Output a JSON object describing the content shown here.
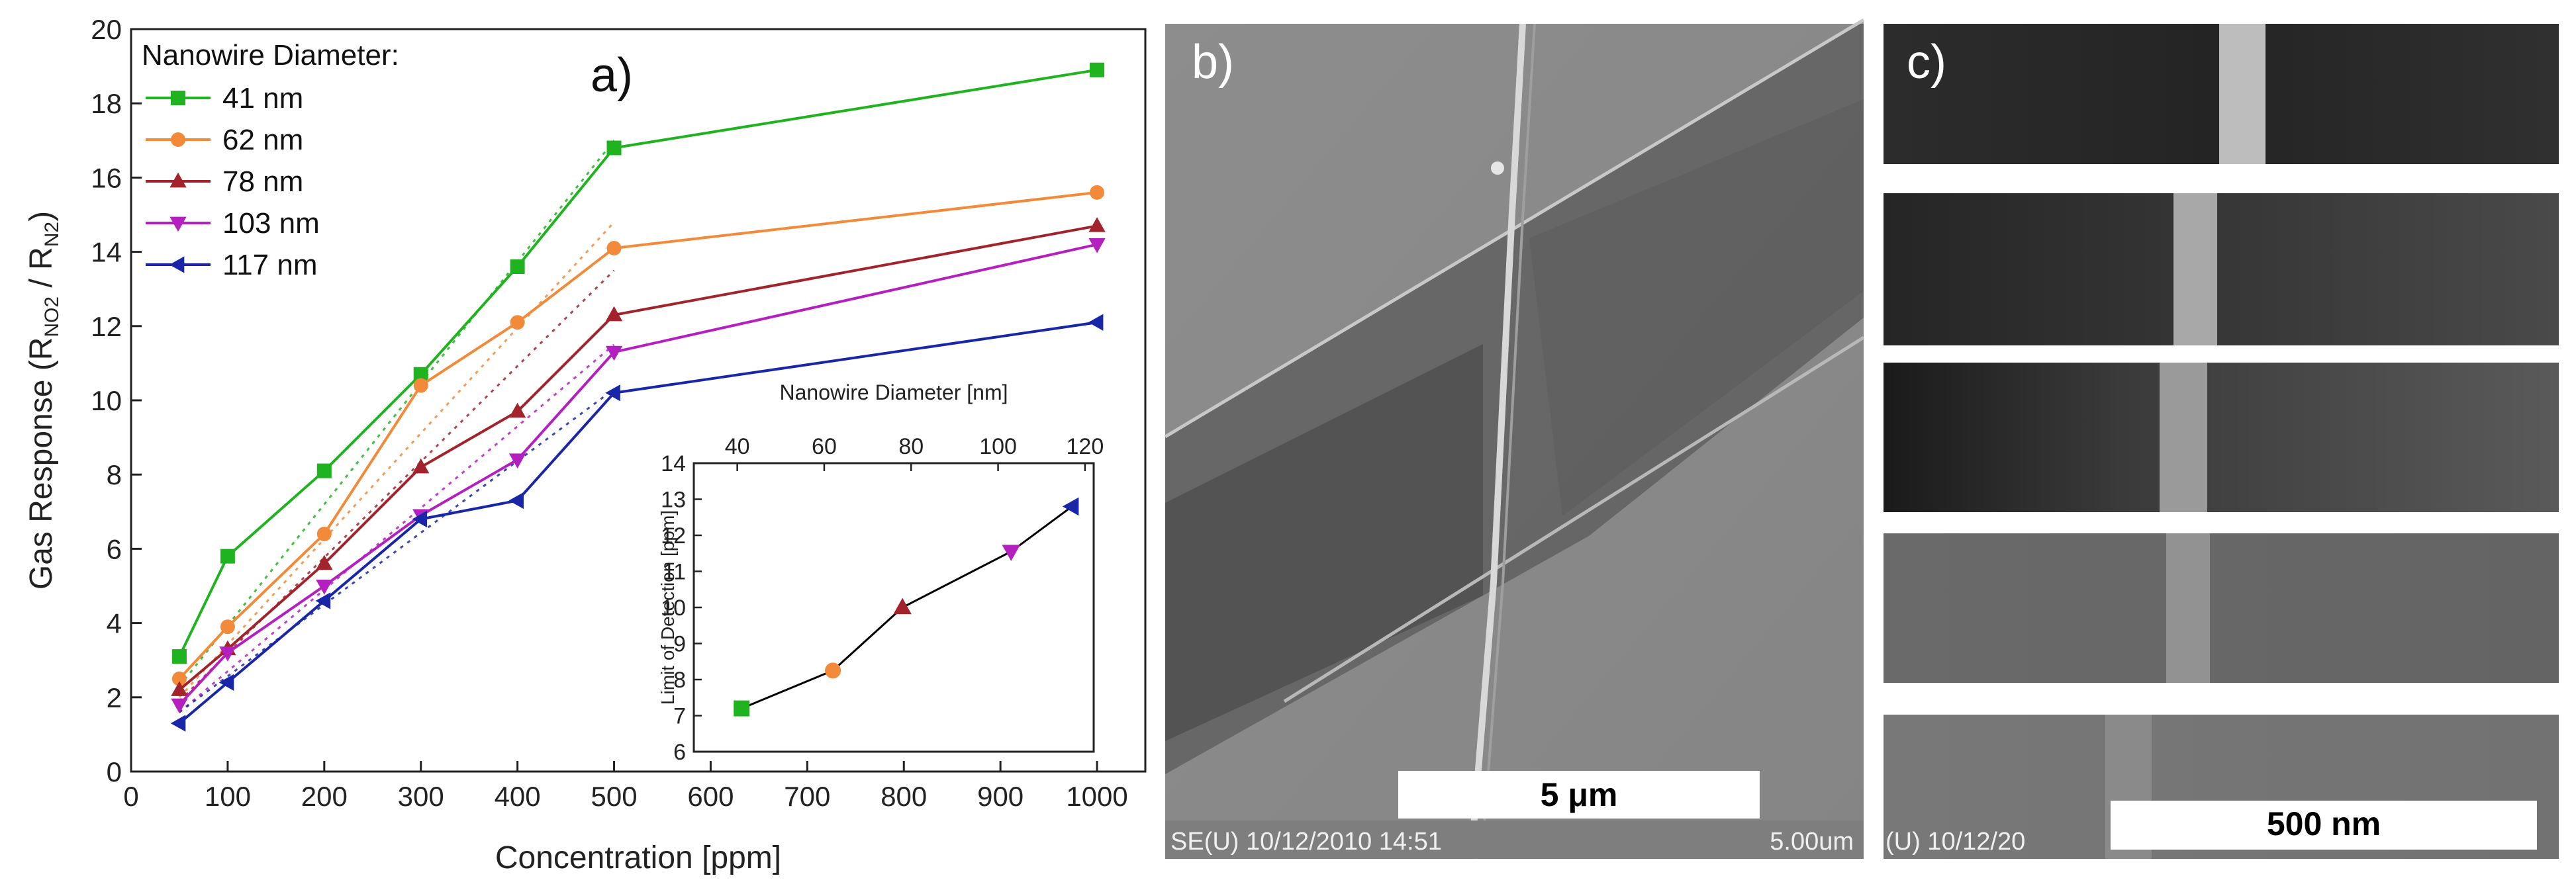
{
  "chart_data": [
    {
      "panel_label": "a)",
      "type": "line",
      "xlabel": "Concentration [ppm]",
      "ylabel_prefix": "Gas Response   (R",
      "ylabel_sub1": "NO2",
      "ylabel_mid": " / R",
      "ylabel_sub2": "N2",
      "ylabel_suffix": ")",
      "ylim": [
        0,
        20
      ],
      "y_ticks": [
        0,
        2,
        4,
        6,
        8,
        10,
        12,
        14,
        16,
        18,
        20
      ],
      "x_ticks": [
        0,
        100,
        200,
        300,
        400,
        500,
        600,
        700,
        800,
        900,
        1000
      ],
      "legend_title": "Nanowire Diameter:",
      "legend_position": "top-left",
      "x": [
        50,
        100,
        200,
        300,
        400,
        500,
        1000
      ],
      "series": [
        {
          "name": "41 nm",
          "color": "#1fb41f",
          "marker": "square",
          "values": [
            3.1,
            5.8,
            8.1,
            10.7,
            13.6,
            16.8,
            18.9
          ]
        },
        {
          "name": "62 nm",
          "color": "#f28a3a",
          "marker": "circle",
          "values": [
            2.5,
            3.9,
            6.4,
            10.4,
            12.1,
            14.1,
            15.6
          ]
        },
        {
          "name": "78 nm",
          "color": "#a3232c",
          "marker": "triangle-up",
          "values": [
            2.2,
            3.3,
            5.6,
            8.2,
            9.7,
            12.3,
            14.7
          ]
        },
        {
          "name": "103 nm",
          "color": "#b41fbf",
          "marker": "triangle-down",
          "values": [
            1.8,
            3.2,
            5.0,
            6.9,
            8.4,
            11.3,
            14.2
          ]
        },
        {
          "name": "117 nm",
          "color": "#1a26a8",
          "marker": "triangle-left",
          "values": [
            1.3,
            2.4,
            4.6,
            6.8,
            7.3,
            10.2,
            12.1
          ]
        }
      ],
      "fit_lines": [
        {
          "color": "#1fb41f",
          "from": [
            50,
            2.3
          ],
          "to": [
            500,
            17.0
          ]
        },
        {
          "color": "#f28a3a",
          "from": [
            50,
            2.0
          ],
          "to": [
            500,
            14.8
          ]
        },
        {
          "color": "#a3232c",
          "from": [
            50,
            1.9
          ],
          "to": [
            500,
            13.5
          ]
        },
        {
          "color": "#b41fbf",
          "from": [
            50,
            1.6
          ],
          "to": [
            500,
            11.5
          ]
        },
        {
          "color": "#1a26a8",
          "from": [
            50,
            1.6
          ],
          "to": [
            500,
            10.3
          ]
        }
      ],
      "inset": {
        "type": "line",
        "xlabel": "Nanowire Diameter [nm]",
        "xlabel_position": "top",
        "ylabel": "Limit of Detection [ppm]",
        "ylim": [
          6,
          14
        ],
        "y_ticks": [
          6,
          7,
          8,
          9,
          10,
          11,
          12,
          13,
          14
        ],
        "xlim": [
          30,
          122
        ],
        "x_ticks": [
          40,
          60,
          80,
          100,
          120
        ],
        "line_color": "#000000",
        "points": [
          {
            "x": 41,
            "y": 7.2,
            "color": "#1fb41f",
            "marker": "square"
          },
          {
            "x": 62,
            "y": 8.25,
            "color": "#f28a3a",
            "marker": "circle"
          },
          {
            "x": 78,
            "y": 10.0,
            "color": "#a3232c",
            "marker": "triangle-up"
          },
          {
            "x": 103,
            "y": 11.55,
            "color": "#b41fbf",
            "marker": "triangle-down"
          },
          {
            "x": 117,
            "y": 12.8,
            "color": "#1a26a8",
            "marker": "triangle-left"
          }
        ]
      }
    }
  ],
  "sem_b": {
    "panel_label": "b)",
    "scale_bar_label": "5 μm",
    "footer_left": "SE(U) 10/12/2010 14:51",
    "footer_right": "5.00um"
  },
  "sem_c": {
    "panel_label": "c)",
    "scale_bar_label": "500 nm",
    "footer_left": "(U) 10/12/20"
  }
}
